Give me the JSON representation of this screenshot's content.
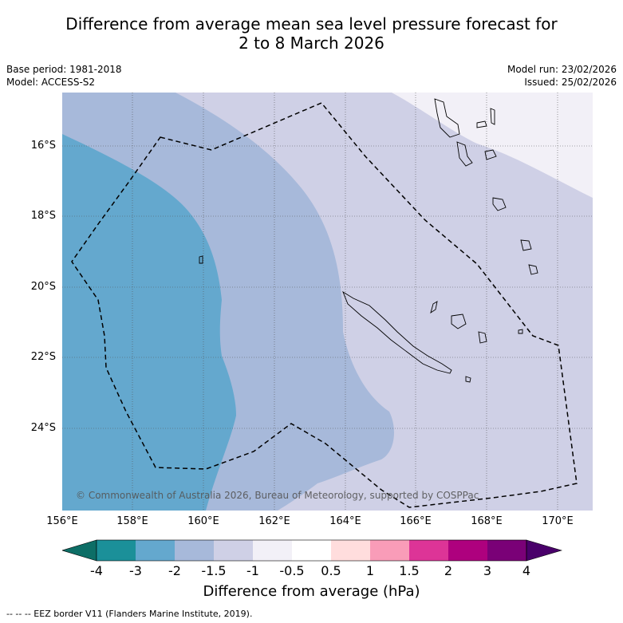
{
  "title": {
    "line1": "Difference from average mean sea level pressure forecast for",
    "line2": "2 to 8 March 2026"
  },
  "meta": {
    "base_period": "Base period: 1981-2018",
    "model": "Model: ACCESS-S2",
    "model_run": "Model run: 23/02/2026",
    "issued": "Issued: 25/02/2026"
  },
  "axes": {
    "lat_labels": [
      "16°S",
      "18°S",
      "20°S",
      "22°S",
      "24°S"
    ],
    "lon_labels": [
      "156°E",
      "158°E",
      "160°E",
      "162°E",
      "164°E",
      "166°E",
      "168°E",
      "170°E"
    ]
  },
  "copyright": "© Commonwealth of Australia 2026, Bureau of Meteorology, supported by COSPPac",
  "colorbar": {
    "labels": [
      "-4",
      "-3",
      "-2",
      "-1.5",
      "-1",
      "-0.5",
      "0.5",
      "1",
      "1.5",
      "2",
      "3",
      "4"
    ],
    "colors": [
      "#0d6e66",
      "#1b9099",
      "#64a8ce",
      "#a7b9da",
      "#cfd0e6",
      "#f2f0f7",
      "#ffffff",
      "#ffdddd",
      "#f99cb8",
      "#dd3497",
      "#ae017e",
      "#7a0177",
      "#49006a"
    ],
    "title": "Difference from average (hPa)"
  },
  "footer": "--  --  -- EEZ border V11 (Flanders Marine Institute, 2019).",
  "legend_colors": {
    "band_minus3": "#64a8ce",
    "band_minus2": "#a7b9da",
    "band_minus1_5": "#cfd0e6",
    "band_minus1": "#f2f0f7"
  }
}
